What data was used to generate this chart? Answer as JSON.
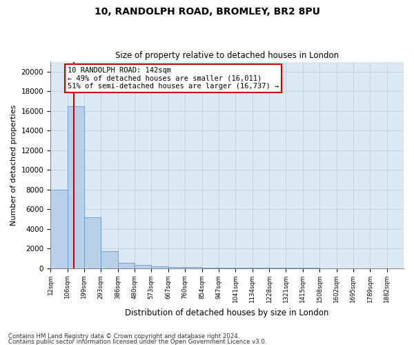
{
  "title1": "10, RANDOLPH ROAD, BROMLEY, BR2 8PU",
  "title2": "Size of property relative to detached houses in London",
  "xlabel": "Distribution of detached houses by size in London",
  "ylabel": "Number of detached properties",
  "footnote1": "Contains HM Land Registry data © Crown copyright and database right 2024.",
  "footnote2": "Contains public sector information licensed under the Open Government Licence v3.0.",
  "bar_left_edges": [
    12,
    106,
    199,
    293,
    386,
    480,
    573,
    667,
    760,
    854,
    947,
    1041,
    1134,
    1228,
    1321,
    1415,
    1508,
    1602,
    1695,
    1789
  ],
  "bar_widths": [
    94,
    93,
    94,
    93,
    94,
    93,
    94,
    93,
    94,
    93,
    94,
    93,
    94,
    93,
    94,
    93,
    94,
    93,
    94,
    93
  ],
  "bar_heights": [
    8000,
    16500,
    5200,
    1700,
    550,
    300,
    200,
    130,
    80,
    50,
    30,
    20,
    15,
    10,
    8,
    5,
    4,
    3,
    2,
    1
  ],
  "bar_color": "#b8d0ea",
  "bar_edge_color": "#6699cc",
  "grid_color": "#c0d0e0",
  "background_color": "#dce8f4",
  "property_line_x": 142,
  "property_line_color": "#cc0000",
  "annotation_line1": "10 RANDOLPH ROAD: 142sqm",
  "annotation_line2": "← 49% of detached houses are smaller (16,011)",
  "annotation_line3": "51% of semi-detached houses are larger (16,737) →",
  "annotation_box_color": "#cc0000",
  "ylim": [
    0,
    21000
  ],
  "yticks": [
    0,
    2000,
    4000,
    6000,
    8000,
    10000,
    12000,
    14000,
    16000,
    18000,
    20000
  ],
  "tick_labels": [
    "12sqm",
    "106sqm",
    "199sqm",
    "293sqm",
    "386sqm",
    "480sqm",
    "573sqm",
    "667sqm",
    "760sqm",
    "854sqm",
    "947sqm",
    "1041sqm",
    "1134sqm",
    "1228sqm",
    "1321sqm",
    "1415sqm",
    "1508sqm",
    "1602sqm",
    "1695sqm",
    "1789sqm",
    "1882sqm"
  ],
  "xlim_left": 12,
  "xlim_right": 1975
}
